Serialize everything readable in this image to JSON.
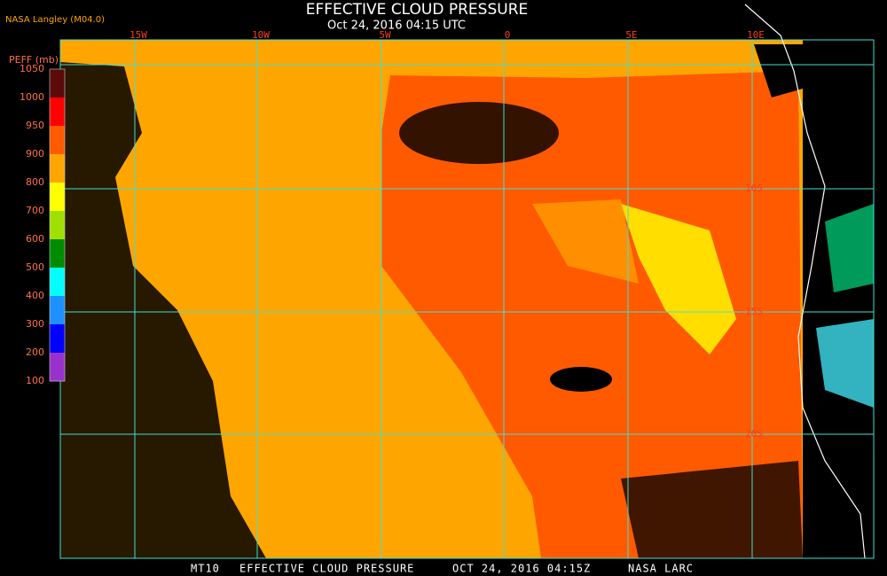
{
  "header": {
    "title": "EFFECTIVE CLOUD PRESSURE",
    "subtitle": "Oct 24, 2016 04:15 UTC",
    "credit": "NASA Langley (M04.0)"
  },
  "legend": {
    "title": "PEFF (mb)",
    "labels": [
      1050,
      1000,
      950,
      900,
      800,
      700,
      600,
      500,
      400,
      300,
      200,
      100
    ],
    "colors": [
      "#5c0a0a",
      "#ff0000",
      "#ff5a00",
      "#ffa500",
      "#ffff00",
      "#a0e000",
      "#008c00",
      "#00ffff",
      "#1e90ff",
      "#0000ff",
      "#9932cc"
    ]
  },
  "map": {
    "longitudes": [
      "15W",
      "10W",
      "5W",
      "0",
      "5E",
      "10E"
    ],
    "latitudes": [
      "10S",
      "15S",
      "20S"
    ]
  },
  "footer": [
    "MT10",
    "EFFECTIVE CLOUD PRESSURE",
    "OCT 24, 2016 04:15Z",
    "NASA LARC"
  ]
}
